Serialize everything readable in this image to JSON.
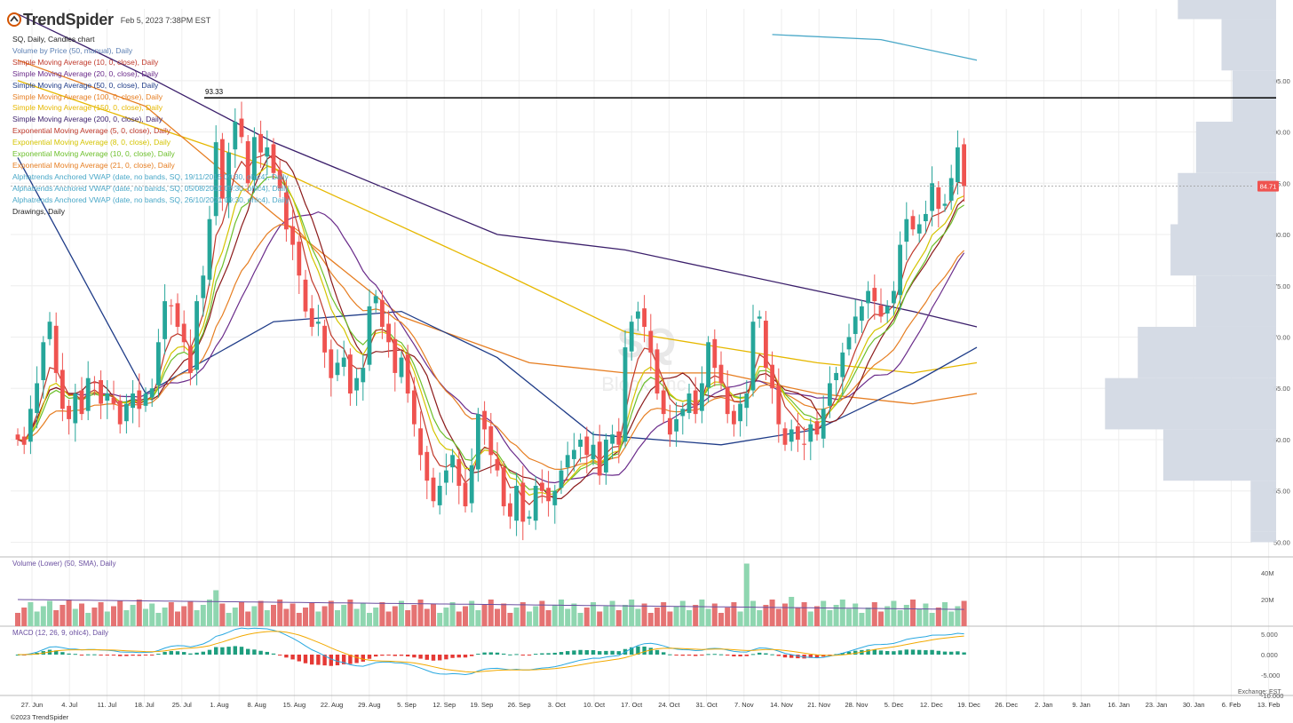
{
  "brand": {
    "name": "TrendSpider",
    "timestamp": "Feb 5, 2023 7:38PM EST",
    "copyright": "©2023 TrendSpider"
  },
  "watermark": {
    "ticker": "SQ",
    "company": "Block, Inc."
  },
  "legend": [
    {
      "text": "SQ, Daily, Candles chart",
      "color": "#222222"
    },
    {
      "text": "Volume by Price (50, manual), Daily",
      "color": "#5b7fb3"
    },
    {
      "text": "Simple Moving Average (10, 0, close), Daily",
      "color": "#c0392b"
    },
    {
      "text": "Simple Moving Average (20, 0, close), Daily",
      "color": "#6a2b8a"
    },
    {
      "text": "Simple Moving Average (50, 0, close), Daily",
      "color": "#1f3c88"
    },
    {
      "text": "Simple Moving Average (100, 0, close), Daily",
      "color": "#e67e22"
    },
    {
      "text": "Simple Moving Average (150, 0, close), Daily",
      "color": "#e6b800"
    },
    {
      "text": "Simple Moving Average (200, 0, close), Daily",
      "color": "#3b1f6b"
    },
    {
      "text": "Exponential Moving Average (5, 0, close), Daily",
      "color": "#c0392b"
    },
    {
      "text": "Exponential Moving Average (8, 0, close), Daily",
      "color": "#d4c400"
    },
    {
      "text": "Exponential Moving Average (10, 0, close), Daily",
      "color": "#6cbf2a"
    },
    {
      "text": "Exponential Moving Average (21, 0, close), Daily",
      "color": "#e67e22"
    },
    {
      "text": "Alphatrends Anchored VWAP (date, no bands, SQ, 19/11/2015 09:30, ohlc4), Daily",
      "color": "#4aa8c8"
    },
    {
      "text": "Alphatrends Anchored VWAP (date, no bands, SQ, 05/08/2021 09:30, ohlc4), Daily",
      "color": "#4aa8c8"
    },
    {
      "text": "Alphatrends Anchored VWAP (date, no bands, SQ, 26/10/2021 09:30, ohlc4), Daily",
      "color": "#4aa8c8"
    },
    {
      "text": "Drawings, Daily",
      "color": "#222222"
    }
  ],
  "price_panel": {
    "y_ticks": [
      50.0,
      55.0,
      60.0,
      65.0,
      70.0,
      75.0,
      80.0,
      85.0,
      90.0,
      95.0
    ],
    "last_price_label": "84.71",
    "horizontal_line_label": "93.33"
  },
  "volume_panel": {
    "label": "Volume (Lower) (50, SMA), Daily",
    "y_ticks": [
      "20M",
      "40M"
    ]
  },
  "macd_panel": {
    "label": "MACD (12, 26, 9, ohlc4), Daily",
    "y_ticks": [
      "5.000",
      "0.000",
      "-5.000",
      "-10.000"
    ]
  },
  "x_axis": {
    "labels": [
      "27. Jun",
      "4. Jul",
      "11. Jul",
      "18. Jul",
      "25. Jul",
      "1. Aug",
      "8. Aug",
      "15. Aug",
      "22. Aug",
      "29. Aug",
      "5. Sep",
      "12. Sep",
      "19. Sep",
      "26. Sep",
      "3. Oct",
      "10. Oct",
      "17. Oct",
      "24. Oct",
      "31. Oct",
      "7. Nov",
      "14. Nov",
      "21. Nov",
      "28. Nov",
      "5. Dec",
      "12. Dec",
      "19. Dec",
      "26. Dec",
      "2. Jan",
      "9. Jan",
      "16. Jan",
      "23. Jan",
      "30. Jan",
      "6. Feb",
      "13. Feb"
    ]
  },
  "exchange_label": "Exchange: EST",
  "colors": {
    "up": "#26a69a",
    "down": "#ef5350",
    "vol_up": "#8fd6b0",
    "vol_down": "#e57373",
    "vbp": "#d3d9e4",
    "macd_line": "#29a8e0",
    "signal_line": "#f2a900"
  },
  "chart_data": {
    "type": "candlestick",
    "title": "SQ, Daily, Candles chart",
    "ylim": [
      49,
      102
    ],
    "closes": [
      60.0,
      59.5,
      63.0,
      65.5,
      69.5,
      71.5,
      66.5,
      63.0,
      62.0,
      64.5,
      62.5,
      66.0,
      65.5,
      63.5,
      64.5,
      63.5,
      61.5,
      63.5,
      64.5,
      63.0,
      64.5,
      65.0,
      69.5,
      73.5,
      73.0,
      71.0,
      69.5,
      66.5,
      73.5,
      76.0,
      81.5,
      89.0,
      83.5,
      88.0,
      91.0,
      89.5,
      85.0,
      89.5,
      88.0,
      88.5,
      86.0,
      84.5,
      80.5,
      79.0,
      76.0,
      72.5,
      71.0,
      71.5,
      68.5,
      66.0,
      67.5,
      68.0,
      64.5,
      66.0,
      67.0,
      73.0,
      74.0,
      71.0,
      69.5,
      66.5,
      68.0,
      64.5,
      61.5,
      58.5,
      56.0,
      54.0,
      55.5,
      57.0,
      58.5,
      55.5,
      53.5,
      57.5,
      62.5,
      61.0,
      58.5,
      57.0,
      53.5,
      52.5,
      55.5,
      52.0,
      52.5,
      55.5,
      55.0,
      54.0,
      55.0,
      57.0,
      58.5,
      59.0,
      60.0,
      58.5,
      59.5,
      56.5,
      60.0,
      60.5,
      59.5,
      69.0,
      71.5,
      72.5,
      71.0,
      68.5,
      64.5,
      62.5,
      60.5,
      62.0,
      63.0,
      64.5,
      62.5,
      65.5,
      69.5,
      67.0,
      65.5,
      62.5,
      61.5,
      63.5,
      64.5,
      71.5,
      72.0,
      67.0,
      65.0,
      61.5,
      59.5,
      61.0,
      60.0,
      59.5,
      61.5,
      60.5,
      63.0,
      65.5,
      66.5,
      68.5,
      70.0,
      72.0,
      73.0,
      74.5,
      73.5,
      72.0,
      73.0,
      74.5,
      79.0,
      81.5,
      80.5,
      81.0,
      82.0,
      85.0,
      82.5,
      83.0,
      85.5,
      88.5,
      84.71
    ],
    "hline": 93.33,
    "moving_averages": [
      {
        "name": "Simple Moving Average (200, 0, close), Daily",
        "points": [
          [
            0,
            101.5
          ],
          [
            20,
            95.5
          ],
          [
            40,
            89.0
          ],
          [
            75,
            80.0
          ],
          [
            95,
            78.5
          ],
          [
            110,
            76.5
          ],
          [
            125,
            74.5
          ],
          [
            140,
            72.5
          ],
          [
            150,
            71.0
          ]
        ]
      },
      {
        "name": "Simple Moving Average (150, 0, close), Daily",
        "points": [
          [
            0,
            95.0
          ],
          [
            40,
            86.5
          ],
          [
            75,
            76.5
          ],
          [
            95,
            70.5
          ],
          [
            110,
            69.0
          ],
          [
            125,
            67.5
          ],
          [
            140,
            66.5
          ],
          [
            150,
            67.5
          ]
        ]
      },
      {
        "name": "Simple Moving Average (100, 0, close), Daily",
        "points": [
          [
            0,
            97.0
          ],
          [
            20,
            92.5
          ],
          [
            40,
            82.0
          ],
          [
            60,
            72.0
          ],
          [
            80,
            67.5
          ],
          [
            95,
            66.5
          ],
          [
            110,
            66.5
          ],
          [
            125,
            64.5
          ],
          [
            140,
            63.5
          ],
          [
            150,
            64.5
          ]
        ]
      },
      {
        "name": "Simple Moving Average (50, 0, close), Daily",
        "points": [
          [
            0,
            87.5
          ],
          [
            20,
            64.5
          ],
          [
            40,
            71.5
          ],
          [
            60,
            72.5
          ],
          [
            75,
            68.0
          ],
          [
            90,
            60.5
          ],
          [
            110,
            59.5
          ],
          [
            125,
            61.0
          ],
          [
            140,
            65.5
          ],
          [
            150,
            69.0
          ]
        ]
      }
    ],
    "anchored_vwap": {
      "points": [
        [
          118,
          99.5
        ],
        [
          135,
          99.0
        ],
        [
          150,
          97.0
        ]
      ]
    },
    "volume_by_price": [
      [
        50,
        51,
        7
      ],
      [
        51,
        56,
        7
      ],
      [
        56,
        61,
        31
      ],
      [
        61,
        66,
        47
      ],
      [
        66,
        71,
        38
      ],
      [
        71,
        76,
        22
      ],
      [
        76,
        81,
        29
      ],
      [
        81,
        86,
        27
      ],
      [
        86,
        91,
        22
      ],
      [
        91,
        96,
        12
      ],
      [
        96,
        101,
        15
      ],
      [
        101,
        103,
        27
      ]
    ]
  }
}
